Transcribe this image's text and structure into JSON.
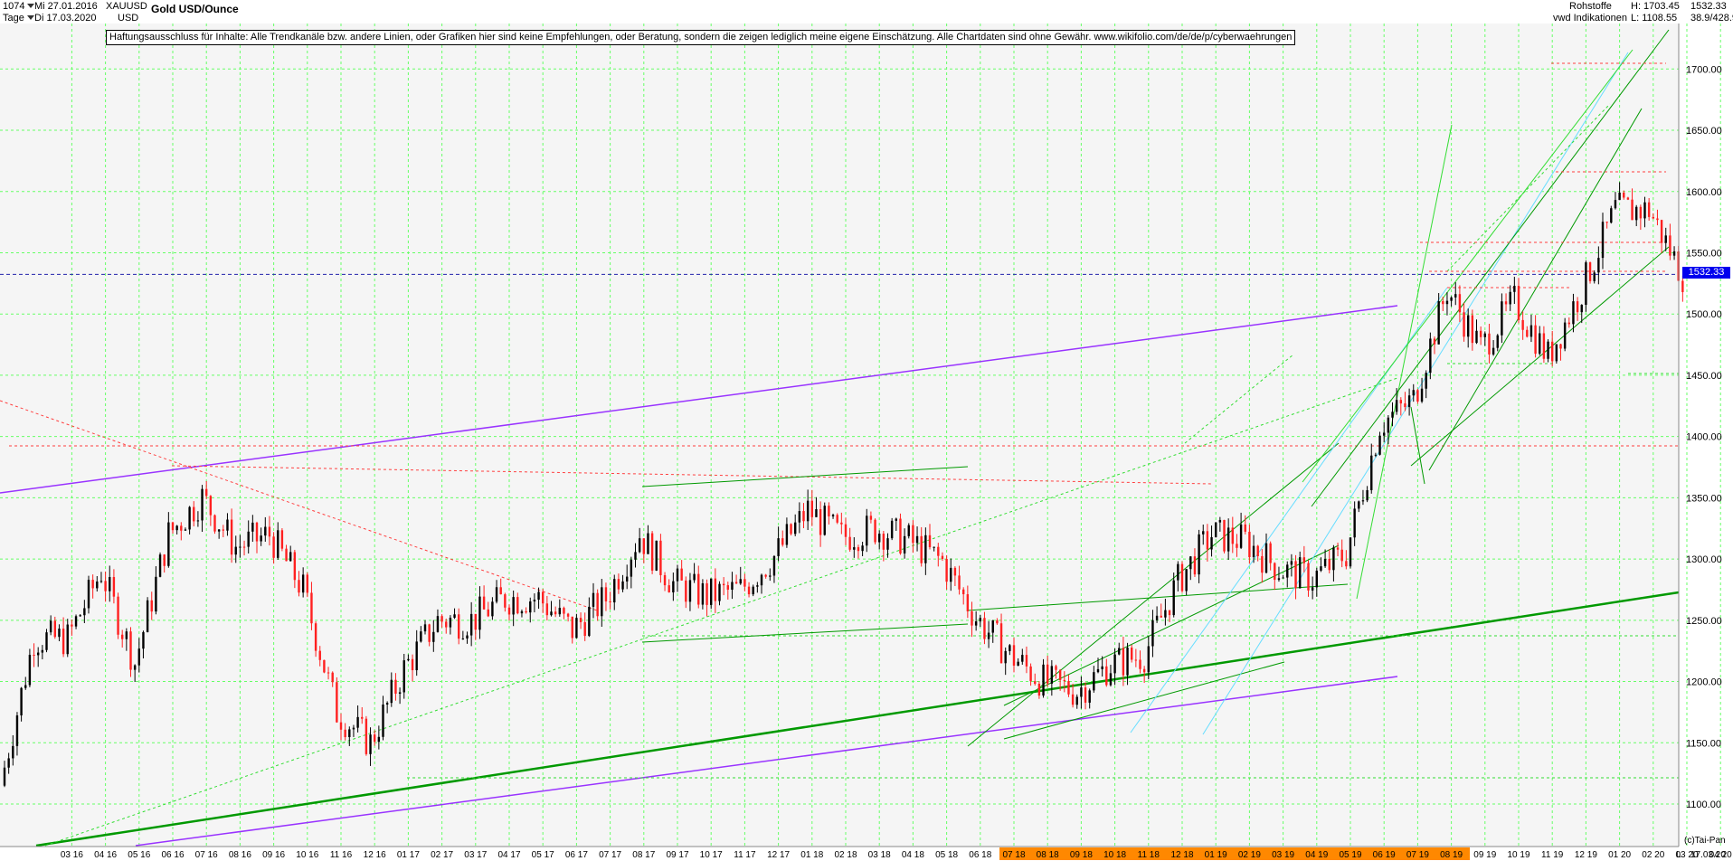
{
  "header": {
    "bars": "1074",
    "start_date": "Mi 27.01.2016",
    "period": "Tage",
    "end_date": "Di 17.03.2020",
    "symbol": "XAUUSD",
    "currency": "USD",
    "title": "Gold USD/Ounce",
    "category": "Rohstoffe",
    "indicator": "vwd Indikationen",
    "high": "H: 1703.45",
    "low": "L: 1108.55",
    "last": "1532.33",
    "range": "38.9/428.9"
  },
  "disclaimer": "Haftungsausschluss für Inhalte: Alle Trendkanäle bzw. andere Linien, oder Grafiken hier sind keine Empfehlungen, oder Beratung, sondern die zeigen lediglich meine eigene Einschätzung. Alle Chartdaten sind ohne Gewähr.  www.wikifolio.com/de/de/p/cyberwaehrungen",
  "footer": {
    "copyright": "(c)Tai-Pan",
    "axis_end_label": "L",
    "axis_end_date": "17.03.20"
  },
  "colors": {
    "up": "#000000",
    "down": "#ff2020",
    "grid": "#66ff66",
    "green_line": "#009900",
    "light_green": "#33dd33",
    "purple": "#9933ff",
    "cyan": "#66ddff",
    "red_dash": "#ff4040",
    "price_tag": "#0000ee",
    "axis_highlight": "#ff8800"
  },
  "chart_data": {
    "type": "candlestick",
    "title": "Gold USD/Ounce",
    "ylim": [
      1100,
      1750
    ],
    "y_ticks": [
      1100,
      1150,
      1200,
      1250,
      1300,
      1350,
      1400,
      1450,
      1500,
      1550,
      1600,
      1650,
      1700
    ],
    "x_tick_labels": [
      "03 16",
      "04 16",
      "05 16",
      "06 16",
      "07 16",
      "08 16",
      "09 16",
      "10 16",
      "11 16",
      "12 16",
      "01 17",
      "02 17",
      "03 17",
      "04 17",
      "05 17",
      "06 17",
      "07 17",
      "08 17",
      "09 17",
      "10 17",
      "11 17",
      "12 17",
      "01 18",
      "02 18",
      "03 18",
      "04 18",
      "05 18",
      "06 18",
      "07 18",
      "08 18",
      "09 18",
      "10 18",
      "11 18",
      "12 18",
      "01 19",
      "02 19",
      "03 19",
      "04 19",
      "05 19",
      "06 19",
      "07 19",
      "08 19",
      "09 19",
      "10 19",
      "11 19",
      "12 19",
      "01 20",
      "02 20",
      "03 20",
      "04 20"
    ],
    "last_price": 1532.33,
    "high": 1703.45,
    "low": 1108.55,
    "grid": true,
    "series": [
      {
        "month": "01 16",
        "close": 1115
      },
      {
        "month": "02 16",
        "close": 1235
      },
      {
        "month": "03 16",
        "close": 1235
      },
      {
        "month": "04 16",
        "close": 1290
      },
      {
        "month": "05 16",
        "close": 1215
      },
      {
        "month": "06 16",
        "close": 1320
      },
      {
        "month": "07 16",
        "close": 1350
      },
      {
        "month": "08 16",
        "close": 1310
      },
      {
        "month": "09 16",
        "close": 1320
      },
      {
        "month": "10 16",
        "close": 1275
      },
      {
        "month": "11 16",
        "close": 1175
      },
      {
        "month": "12 16",
        "close": 1150
      },
      {
        "month": "01 17",
        "close": 1210
      },
      {
        "month": "02 17",
        "close": 1250
      },
      {
        "month": "03 17",
        "close": 1250
      },
      {
        "month": "04 17",
        "close": 1268
      },
      {
        "month": "05 17",
        "close": 1268
      },
      {
        "month": "06 17",
        "close": 1242
      },
      {
        "month": "07 17",
        "close": 1268
      },
      {
        "month": "08 17",
        "close": 1320
      },
      {
        "month": "09 17",
        "close": 1280
      },
      {
        "month": "10 17",
        "close": 1270
      },
      {
        "month": "11 17",
        "close": 1275
      },
      {
        "month": "12 17",
        "close": 1302
      },
      {
        "month": "01 18",
        "close": 1340
      },
      {
        "month": "02 18",
        "close": 1318
      },
      {
        "month": "03 18",
        "close": 1325
      },
      {
        "month": "04 18",
        "close": 1315
      },
      {
        "month": "05 18",
        "close": 1298
      },
      {
        "month": "06 18",
        "close": 1252
      },
      {
        "month": "07 18",
        "close": 1222
      },
      {
        "month": "08 18",
        "close": 1200
      },
      {
        "month": "09 18",
        "close": 1192
      },
      {
        "month": "10 18",
        "close": 1214
      },
      {
        "month": "11 18",
        "close": 1222
      },
      {
        "month": "12 18",
        "close": 1282
      },
      {
        "month": "01 19",
        "close": 1320
      },
      {
        "month": "02 19",
        "close": 1315
      },
      {
        "month": "03 19",
        "close": 1292
      },
      {
        "month": "04 19",
        "close": 1284
      },
      {
        "month": "05 19",
        "close": 1305
      },
      {
        "month": "06 19",
        "close": 1410
      },
      {
        "month": "07 19",
        "close": 1430
      },
      {
        "month": "08 19",
        "close": 1520
      },
      {
        "month": "09 19",
        "close": 1472
      },
      {
        "month": "10 19",
        "close": 1510
      },
      {
        "month": "11 19",
        "close": 1465
      },
      {
        "month": "12 19",
        "close": 1520
      },
      {
        "month": "01 20",
        "close": 1585
      },
      {
        "month": "02 20",
        "close": 1585
      },
      {
        "month": "03 20",
        "close": 1532
      }
    ]
  }
}
